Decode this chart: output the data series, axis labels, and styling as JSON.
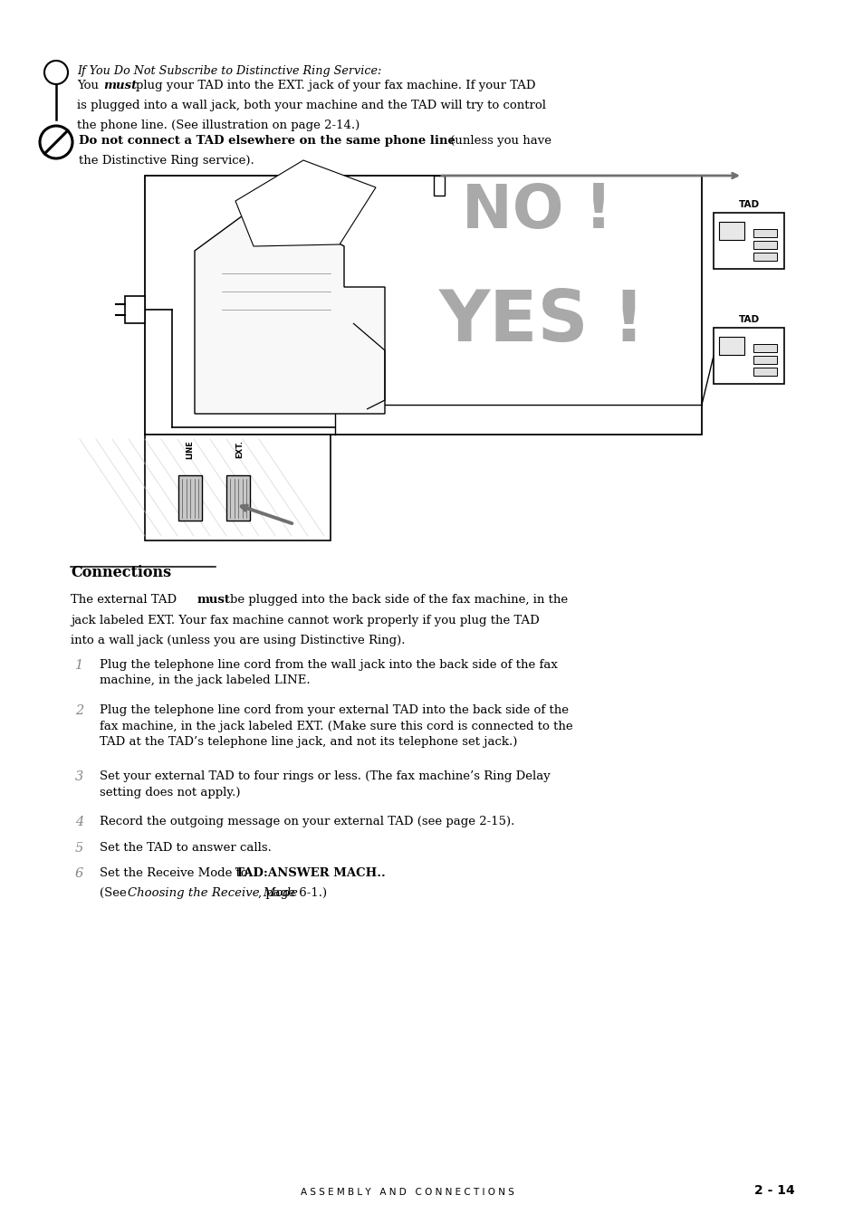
{
  "bg_color": "#ffffff",
  "title": "Connections",
  "footer_text": "A S S E M B L Y   A N D   C O N N E C T I O N S",
  "footer_page": "2 - 14",
  "note1_italic": "If You Do Not Subscribe to Distinctive Ring Service:",
  "note1_body_post": " plug your TAD into the EXT. jack of your fax machine. If your TAD\nis plugged into a wall jack, both your machine and the TAD will try to control\nthe phone line. (See illustration on page 2-14.)",
  "note2_bold": "Do not connect a TAD elsewhere on the same phone line",
  "note2_normal": " (unless you have",
  "note2_normal2": "the Distinctive Ring service).",
  "connections_intro_pre": "The external TAD ",
  "connections_intro_bold": "must",
  "connections_intro_post": " be plugged into the back side of the fax machine, in the\njack labeled EXT. Your fax machine cannot work properly if you plug the TAD\ninto a wall jack (unless you are using Distinctive Ring).",
  "steps": [
    {
      "num": "1",
      "text": "Plug the telephone line cord from the wall jack into the back side of the fax\nmachine, in the jack labeled LINE."
    },
    {
      "num": "2",
      "text": "Plug the telephone line cord from your external TAD into the back side of the\nfax machine, in the jack labeled EXT. (Make sure this cord is connected to the\nTAD at the TAD’s telephone line jack, and not its telephone set jack.)"
    },
    {
      "num": "3",
      "text": "Set your external TAD to four rings or less. (The fax machine’s Ring Delay\nsetting does not apply.)"
    },
    {
      "num": "4",
      "text": "Record the outgoing message on your external TAD (see page 2-15)."
    },
    {
      "num": "5",
      "text": "Set the TAD to answer calls."
    },
    {
      "num": "6",
      "text_pre": "Set the Receive Mode to ",
      "text_bold": "TAD:ANSWER MACH..",
      "text_italic": "Choosing the Receive Mode",
      "text_end": ", page 6-1.)"
    }
  ],
  "no_color": "#a0a0a0",
  "yes_color": "#a0a0a0"
}
